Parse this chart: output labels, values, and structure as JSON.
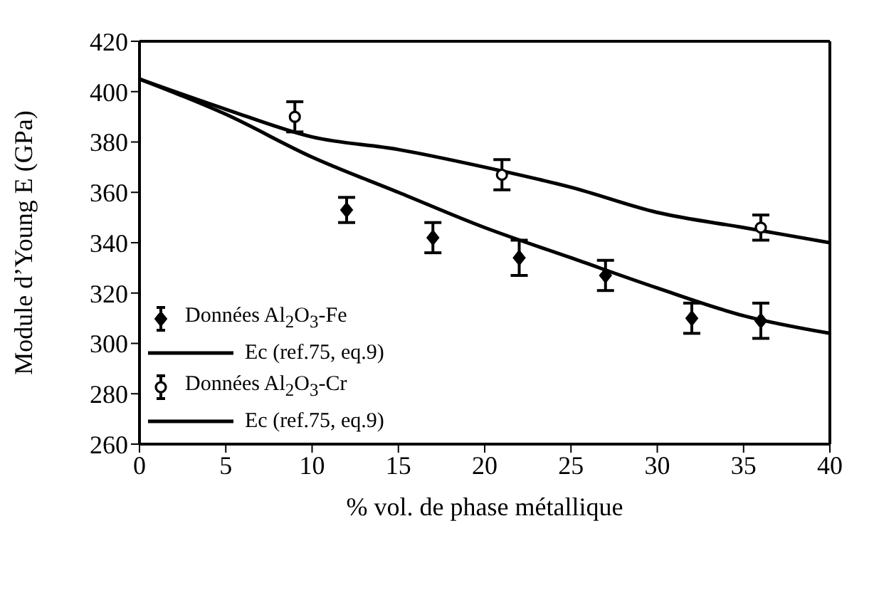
{
  "chart_data": {
    "type": "scatter",
    "xlabel": "% vol. de phase métallique",
    "ylabel": "Module d’Young E (GPa)",
    "xlim": [
      0,
      40
    ],
    "xticks": [
      0,
      5,
      10,
      15,
      20,
      25,
      30,
      35,
      40
    ],
    "ylim": [
      260,
      420
    ],
    "yticks": [
      260,
      280,
      300,
      320,
      340,
      360,
      380,
      400,
      420
    ],
    "legend": "bottom left",
    "series": [
      {
        "name": "Données Al$_{2}$O$_{3}$-Fe",
        "marker": "diamond",
        "color": "#000000",
        "x": [
          12,
          17,
          22,
          27,
          32,
          36
        ],
        "values": [
          353,
          342,
          334,
          327,
          310,
          309
        ],
        "errors": [
          5,
          6,
          7,
          6,
          6,
          7
        ]
      },
      {
        "name": "Ec (ref.75, eq.9)",
        "type": "line",
        "marker": "none",
        "color": "#000000",
        "x": [
          0,
          5,
          10,
          15,
          20,
          25,
          30,
          35,
          40
        ],
        "values": [
          405,
          391,
          374,
          360,
          346,
          334,
          322,
          311,
          304
        ]
      },
      {
        "name": "Données Al$_{2}$O$_{3}$-Cr",
        "marker": "circle",
        "color": "#000000",
        "x": [
          9,
          21,
          36
        ],
        "values": [
          390,
          367,
          346
        ],
        "errors": [
          6,
          6,
          5
        ]
      },
      {
        "name": "Ec (ref.75, eq.9)",
        "type": "line",
        "marker": "none",
        "color": "#000000",
        "x": [
          0,
          5,
          10,
          15,
          20,
          25,
          30,
          35,
          40
        ],
        "values": [
          405,
          393,
          382,
          377,
          370,
          362,
          352,
          346,
          340
        ]
      }
    ]
  }
}
